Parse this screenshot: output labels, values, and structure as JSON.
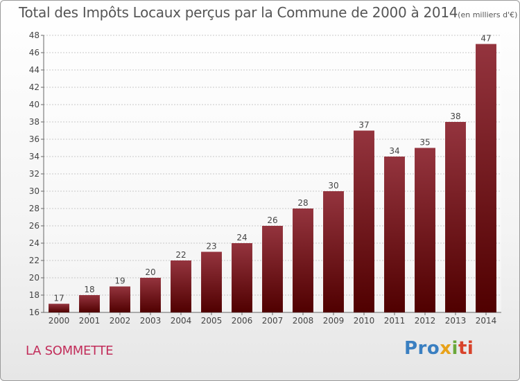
{
  "header": {
    "title": "Total des Impôts Locaux perçus par la Commune de 2000 à 2014",
    "unit": "(en milliers d'€)"
  },
  "footer": {
    "commune": "LA SOMMETTE",
    "logo": [
      "Pro",
      "x",
      "i",
      "ti"
    ]
  },
  "colors": {
    "bar_top": "#94343e",
    "bar_bottom": "#500000",
    "commune_text": "#c22d5a"
  },
  "chart_data": {
    "type": "bar",
    "title": "Total des Impôts Locaux perçus par la Commune de 2000 à 2014",
    "subtitle": "(en milliers d'€)",
    "categories": [
      "2000",
      "2001",
      "2002",
      "2003",
      "2004",
      "2005",
      "2006",
      "2007",
      "2008",
      "2009",
      "2010",
      "2011",
      "2012",
      "2013",
      "2014"
    ],
    "values": [
      17,
      18,
      19,
      20,
      22,
      23,
      24,
      26,
      28,
      30,
      37,
      34,
      35,
      38,
      47
    ],
    "ylim": [
      16,
      48
    ],
    "yticks": [
      16,
      18,
      20,
      22,
      24,
      26,
      28,
      30,
      32,
      34,
      36,
      38,
      40,
      42,
      44,
      46,
      48
    ],
    "xlabel": "",
    "ylabel": "",
    "grid": true,
    "data_labels": true
  }
}
